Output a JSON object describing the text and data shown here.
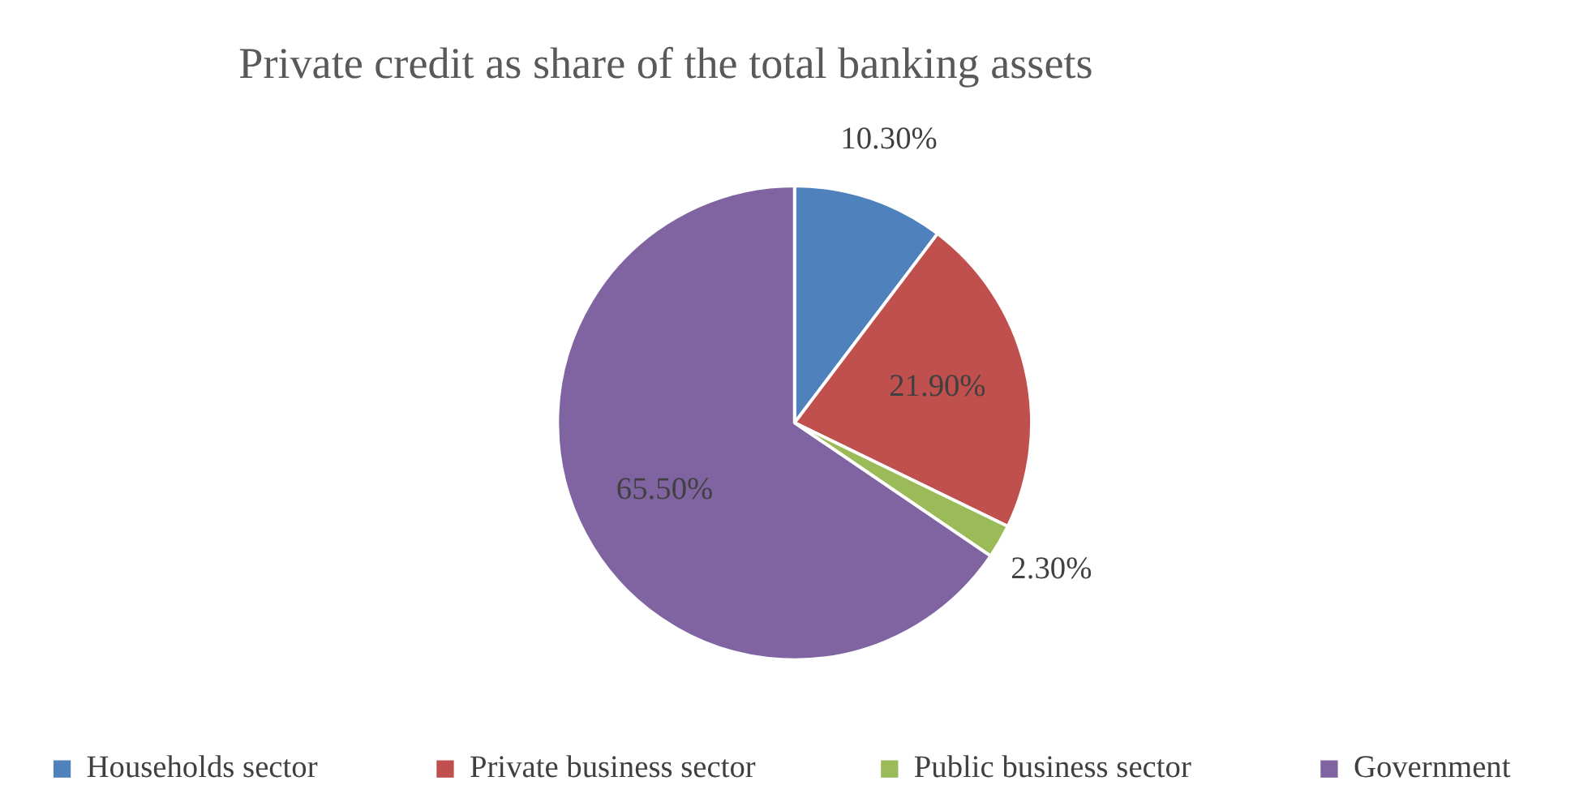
{
  "chart_data": {
    "type": "pie",
    "title": "Private credit as share of the total banking assets",
    "categories": [
      "Households sector",
      "Private business sector",
      "Public business sector",
      "Government"
    ],
    "values": [
      10.3,
      21.9,
      2.3,
      65.5
    ],
    "colors": [
      "#4f81bd",
      "#c0504d",
      "#9bbb59",
      "#8064a2"
    ],
    "value_labels": [
      "10.30%",
      "21.90%",
      "2.30%",
      "65.50%"
    ],
    "legend": "bottom"
  }
}
